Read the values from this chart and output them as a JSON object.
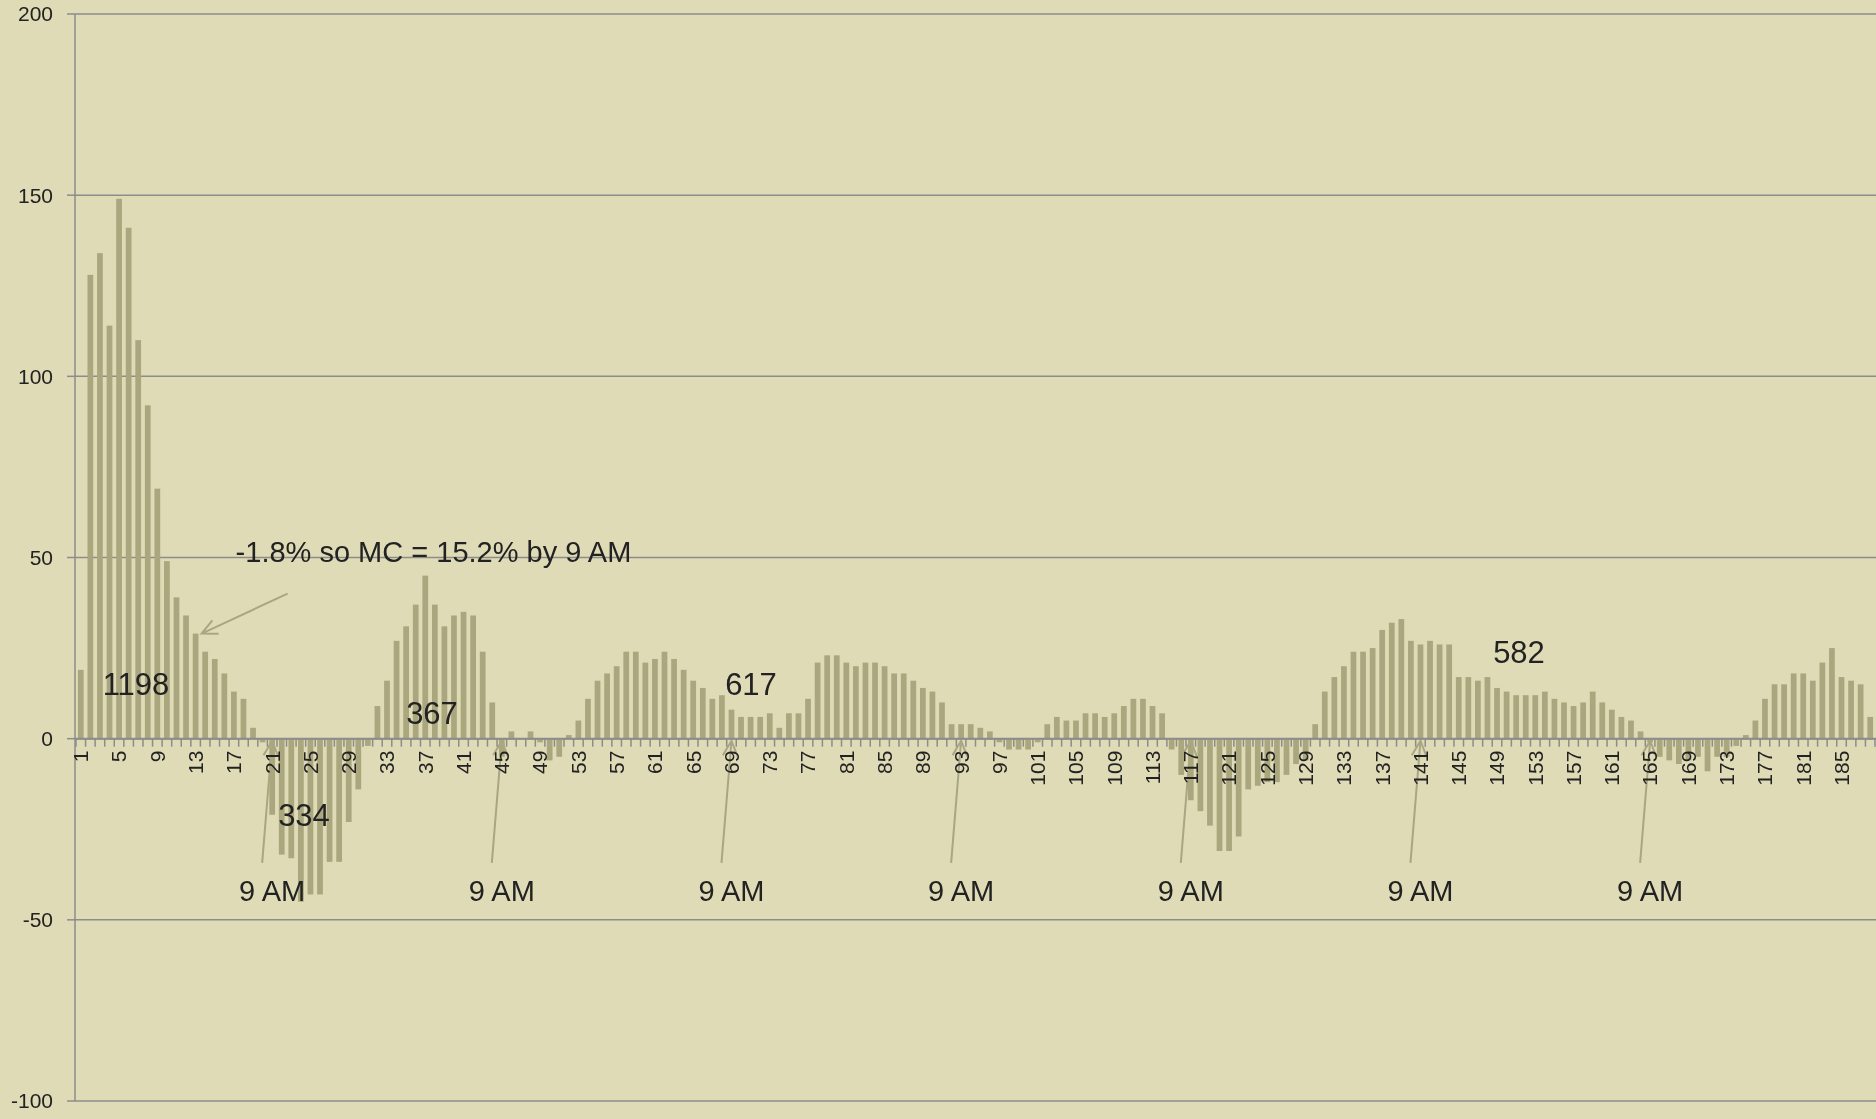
{
  "chart_data": {
    "type": "bar",
    "categories": [
      "1",
      null,
      null,
      null,
      "5",
      null,
      null,
      null,
      "9",
      null,
      null,
      null,
      "13",
      null,
      null,
      null,
      "17",
      null,
      null,
      null,
      "21",
      null,
      null,
      null,
      "25",
      null,
      null,
      null,
      "29",
      null,
      null,
      null,
      "33",
      null,
      null,
      null,
      "37",
      null,
      null,
      null,
      "41",
      null,
      null,
      null,
      "45",
      null,
      null,
      null,
      "49",
      null,
      null,
      null,
      "53",
      null,
      null,
      null,
      "57",
      null,
      null,
      null,
      "61",
      null,
      null,
      null,
      "65",
      null,
      null,
      null,
      "69",
      null,
      null,
      null,
      "73",
      null,
      null,
      null,
      "77",
      null,
      null,
      null,
      "81",
      null,
      null,
      null,
      "85",
      null,
      null,
      null,
      "89",
      null,
      null,
      null,
      "93",
      null,
      null,
      null,
      "97",
      null,
      null,
      null,
      "101",
      null,
      null,
      null,
      "105",
      null,
      null,
      null,
      "109",
      null,
      null,
      null,
      "113",
      null,
      null,
      null,
      "117",
      null,
      null,
      null,
      "121",
      null,
      null,
      null,
      "125",
      null,
      null,
      null,
      "129",
      null,
      null,
      null,
      "133",
      null,
      null,
      null,
      "137",
      null,
      null,
      null,
      "141",
      null,
      null,
      null,
      "145",
      null,
      null,
      null,
      "149",
      null,
      null,
      null,
      "153",
      null,
      null,
      null,
      "157",
      null,
      null,
      null,
      "161",
      null,
      null,
      null,
      "165",
      null,
      null,
      null,
      "169",
      null,
      null,
      null,
      "173",
      null,
      null,
      null,
      "177",
      null,
      null,
      null,
      "181",
      null,
      null,
      null,
      "185",
      null,
      null,
      null
    ],
    "values": [
      19,
      128,
      134,
      114,
      149,
      141,
      110,
      92,
      69,
      49,
      39,
      34,
      29,
      24,
      22,
      18,
      13,
      11,
      3,
      -1,
      -21,
      -32,
      -33,
      -45,
      -43,
      -43,
      -34,
      -34,
      -23,
      -14,
      -2,
      9,
      16,
      27,
      31,
      37,
      45,
      37,
      31,
      34,
      35,
      34,
      24,
      10,
      -5,
      2,
      0,
      2,
      -1,
      -6,
      -5,
      1,
      5,
      11,
      16,
      18,
      20,
      24,
      24,
      21,
      22,
      24,
      22,
      19,
      16,
      14,
      11,
      12,
      8,
      6,
      6,
      6,
      7,
      3,
      7,
      7,
      11,
      21,
      23,
      23,
      21,
      20,
      21,
      21,
      20,
      18,
      18,
      16,
      14,
      13,
      10,
      4,
      4,
      4,
      3,
      2,
      -1,
      -3,
      -3,
      -3,
      -1,
      4,
      6,
      5,
      5,
      7,
      7,
      6,
      7,
      9,
      11,
      11,
      9,
      7,
      -3,
      -10,
      -17,
      -20,
      -24,
      -31,
      -31,
      -27,
      -14,
      -13,
      -12,
      -12,
      -10,
      -7,
      -6,
      4,
      13,
      17,
      20,
      24,
      24,
      25,
      30,
      32,
      33,
      27,
      26,
      27,
      26,
      26,
      17,
      17,
      16,
      17,
      14,
      13,
      12,
      12,
      12,
      13,
      11,
      10,
      9,
      10,
      13,
      10,
      8,
      6,
      5,
      2,
      -1,
      -5,
      -6,
      -7,
      -6,
      -5,
      -9,
      -5,
      -5,
      -2,
      1,
      5,
      11,
      15,
      15,
      18,
      18,
      16,
      21,
      25,
      17,
      16,
      15,
      6
    ],
    "color": "#aaa77f",
    "ylim": [
      -100,
      200
    ],
    "yticks": [
      -100,
      -50,
      0,
      50,
      100,
      150,
      200
    ],
    "grid": "y",
    "annotations": [
      {
        "text": "-1.8% so MC = 15.2% by 9 AM",
        "x": "13",
        "y": 29
      },
      "1198",
      "334",
      "367",
      "617",
      "582",
      {
        "text": "9 AM",
        "x": "21",
        "y": 0
      },
      {
        "text": "9 AM",
        "x": "45",
        "y": 0
      },
      {
        "text": "9 AM",
        "x": "69",
        "y": 0
      },
      {
        "text": "9 AM",
        "x": "93",
        "y": 0
      },
      {
        "text": "9 AM",
        "x": "117",
        "y": 0
      },
      {
        "text": "9 AM",
        "x": "141",
        "y": 0
      },
      {
        "text": "9 AM",
        "x": "165",
        "y": 0
      }
    ]
  }
}
